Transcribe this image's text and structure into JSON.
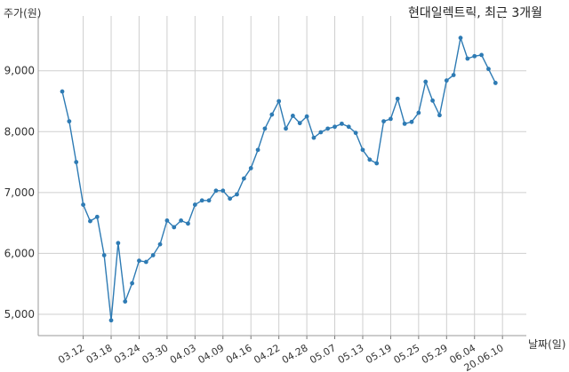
{
  "chart_data": {
    "type": "line",
    "title": "현대일렉트릭, 최근 3개월",
    "ylabel": "주가(원)",
    "xlabel": "날짜(일)",
    "ylim": [
      4650,
      9900
    ],
    "yticks": [
      5000,
      6000,
      7000,
      8000,
      9000
    ],
    "ytick_labels": [
      "5,000",
      "6,000",
      "7,000",
      "8,000",
      "9,000"
    ],
    "xtick_labels": [
      "03.12",
      "03.18",
      "03.24",
      "03.30",
      "04.03",
      "04.09",
      "04.16",
      "04.22",
      "04.28",
      "05.07",
      "05.13",
      "05.19",
      "05.25",
      "05.29",
      "06.04",
      "20.06.10"
    ],
    "xtick_positions": [
      3,
      7,
      11,
      15,
      19,
      23,
      27,
      31,
      35,
      39,
      43,
      47,
      51,
      55,
      59,
      63
    ],
    "grid": true,
    "color": "#2e7bb4",
    "series": [
      {
        "values": [
          8660,
          8170,
          7500,
          6800,
          6530,
          6600,
          5970,
          4900,
          6170,
          5210,
          5510,
          5880,
          5860,
          5970,
          6150,
          6540,
          6430,
          6540,
          6490,
          6800,
          6870,
          6870,
          7030,
          7030,
          6900,
          6970,
          7230,
          7400,
          7700,
          8050,
          8280,
          8500,
          8050,
          8260,
          8140,
          8250,
          7900,
          7990,
          8050,
          8080,
          8130,
          8080,
          7980,
          7700,
          7540,
          7480,
          8170,
          8210,
          8540,
          8130,
          8160,
          8310,
          8820,
          8510,
          8270,
          8840,
          8930,
          9540,
          9200,
          9240,
          9260,
          9030,
          8800
        ]
      }
    ]
  }
}
